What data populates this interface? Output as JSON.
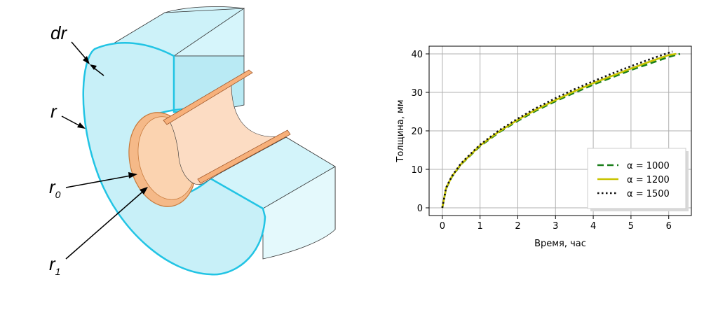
{
  "diagram": {
    "labels": {
      "dr": "dr",
      "r": "r",
      "r0": {
        "main": "r",
        "sub": "0"
      },
      "r1": {
        "main": "r",
        "sub": "1"
      }
    },
    "colors": {
      "outer_fill": "#c8f0f8",
      "outer_edge": "#22c4e4",
      "inner_fill": "#f9c9a0",
      "inner_edge": "#c77a3c"
    }
  },
  "chart_data": {
    "type": "line",
    "title": "",
    "xlabel": "Время, час",
    "ylabel": "Толщина, мм",
    "xlim": [
      -0.35,
      6.6
    ],
    "ylim": [
      -2,
      42
    ],
    "xticks": [
      0,
      1,
      2,
      3,
      4,
      5,
      6
    ],
    "yticks": [
      0,
      10,
      20,
      30,
      40
    ],
    "grid": true,
    "legend_position": "lower-right",
    "series": [
      {
        "name": "α = 1000",
        "color": "#1a7f1a",
        "style": "dashed",
        "x": [
          0,
          0.1,
          0.25,
          0.5,
          1,
          1.5,
          2,
          2.5,
          3,
          3.5,
          4,
          4.5,
          5,
          5.5,
          6,
          6.3
        ],
        "y": [
          0,
          5.0,
          8.0,
          11.3,
          16.0,
          19.6,
          22.6,
          25.3,
          27.7,
          29.9,
          32.0,
          33.9,
          35.8,
          37.5,
          39.2,
          40.0
        ]
      },
      {
        "name": "α = 1200",
        "color": "#c9c400",
        "style": "solid",
        "x": [
          0,
          0.1,
          0.25,
          0.5,
          1,
          1.5,
          2,
          2.5,
          3,
          3.5,
          4,
          4.5,
          5,
          5.5,
          6,
          6.2
        ],
        "y": [
          0,
          5.1,
          8.1,
          11.4,
          16.2,
          19.8,
          22.9,
          25.6,
          28.0,
          30.3,
          32.4,
          34.3,
          36.2,
          38.0,
          39.7,
          40.0
        ]
      },
      {
        "name": "α = 1500",
        "color": "#111111",
        "style": "dotted",
        "x": [
          0,
          0.1,
          0.25,
          0.5,
          1,
          1.5,
          2,
          2.5,
          3,
          3.5,
          4,
          4.5,
          5,
          5.5,
          6,
          6.1
        ],
        "y": [
          0,
          5.2,
          8.2,
          11.6,
          16.4,
          20.1,
          23.2,
          26.0,
          28.5,
          30.8,
          32.9,
          34.9,
          36.8,
          38.6,
          40.3,
          40.6
        ]
      }
    ]
  }
}
